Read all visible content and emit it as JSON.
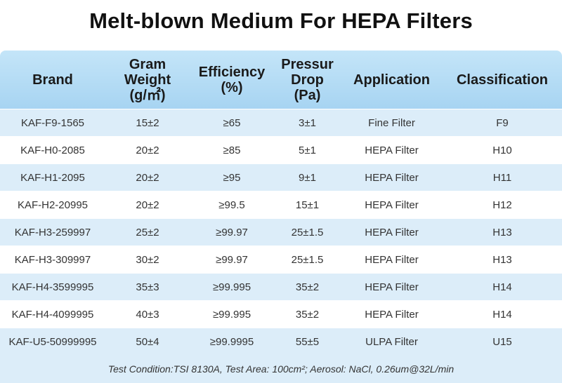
{
  "title": "Melt-blown Medium For HEPA Filters",
  "columns": [
    "Brand",
    "Gram\nWeight\n(g/㎡)",
    "Efficiency\n(%)",
    "Pressur\nDrop\n(Pa)",
    "Application",
    "Classification"
  ],
  "rows": [
    [
      "KAF-F9-1565",
      "15±2",
      "≥65",
      "3±1",
      "Fine Filter",
      "F9"
    ],
    [
      "KAF-H0-2085",
      "20±2",
      "≥85",
      "5±1",
      "HEPA Filter",
      "H10"
    ],
    [
      "KAF-H1-2095",
      "20±2",
      "≥95",
      "9±1",
      "HEPA Filter",
      "H11"
    ],
    [
      "KAF-H2-20995",
      "20±2",
      "≥99.5",
      "15±1",
      "HEPA Filter",
      "H12"
    ],
    [
      "KAF-H3-259997",
      "25±2",
      "≥99.97",
      "25±1.5",
      "HEPA Filter",
      "H13"
    ],
    [
      "KAF-H3-309997",
      "30±2",
      "≥99.97",
      "25±1.5",
      "HEPA Filter",
      "H13"
    ],
    [
      "KAF-H4-3599995",
      "35±3",
      "≥99.995",
      "35±2",
      "HEPA Filter",
      "H14"
    ],
    [
      "KAF-H4-4099995",
      "40±3",
      "≥99.995",
      "35±2",
      "HEPA Filter",
      "H14"
    ],
    [
      "KAF-U5-50999995",
      "50±4",
      "≥99.9995",
      "55±5",
      "ULPA Filter",
      "U15"
    ]
  ],
  "footer": "Test Condition:TSI 8130A, Test Area: 100cm²; Aerosol: NaCl, 0.26um@32L/min",
  "colors": {
    "header_bg": "#aed8f4",
    "stripe_bg": "#dcedf9",
    "title_color": "#111111"
  }
}
